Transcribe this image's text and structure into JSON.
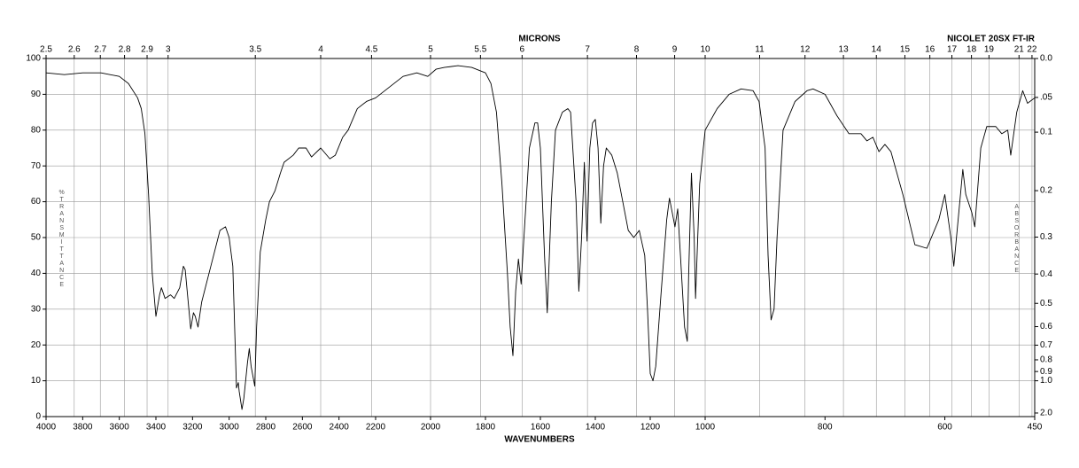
{
  "chart_data": {
    "type": "line",
    "title": "NICOLET 20SX FT-IR",
    "xlabel": "WAVENUMBERS",
    "top_axis_label": "MICRONS",
    "ylabel": "%TRANSMITTANCE",
    "y2label": "ABSORBANCE",
    "xlim": [
      4000,
      450
    ],
    "x_segments": [
      4000,
      2200,
      1000,
      450
    ],
    "xticks": [
      4000,
      3800,
      3600,
      3400,
      3200,
      3000,
      2800,
      2600,
      2400,
      2200,
      2000,
      1800,
      1600,
      1400,
      1200,
      1000,
      800,
      600,
      450
    ],
    "top_ticks": [
      2.5,
      2.6,
      2.7,
      2.8,
      2.9,
      3,
      3.5,
      4,
      4.5,
      5,
      5.5,
      6,
      7,
      8,
      9,
      10,
      11,
      12,
      13,
      14,
      15,
      16,
      17,
      18,
      19,
      21,
      22
    ],
    "ylim": [
      0,
      100
    ],
    "yticks": [
      0,
      10,
      20,
      30,
      40,
      50,
      60,
      70,
      80,
      90,
      100
    ],
    "y2ticks": [
      {
        "value": 0,
        "label": "0.0"
      },
      {
        "value": 0.05,
        "label": ".05"
      },
      {
        "value": 0.1,
        "label": "0.1"
      },
      0.2,
      0.3,
      0.4,
      0.5,
      0.6,
      0.7,
      0.8,
      0.9,
      {
        "value": 1,
        "label": "1.0"
      },
      {
        "value": 2,
        "label": "2.0"
      }
    ],
    "grid": true,
    "color": "#000000",
    "x": [
      4000,
      3900,
      3800,
      3700,
      3600,
      3550,
      3500,
      3480,
      3460,
      3440,
      3420,
      3400,
      3380,
      3370,
      3350,
      3320,
      3300,
      3270,
      3250,
      3240,
      3220,
      3210,
      3195,
      3185,
      3170,
      3150,
      3100,
      3050,
      3020,
      3000,
      2980,
      2960,
      2950,
      2945,
      2930,
      2920,
      2900,
      2890,
      2880,
      2860,
      2850,
      2830,
      2800,
      2780,
      2750,
      2720,
      2700,
      2650,
      2620,
      2580,
      2550,
      2500,
      2450,
      2420,
      2380,
      2350,
      2300,
      2250,
      2200,
      2150,
      2100,
      2050,
      2010,
      1980,
      1950,
      1900,
      1850,
      1800,
      1780,
      1760,
      1740,
      1720,
      1710,
      1700,
      1690,
      1680,
      1670,
      1660,
      1640,
      1620,
      1610,
      1600,
      1585,
      1575,
      1560,
      1545,
      1520,
      1500,
      1490,
      1470,
      1460,
      1450,
      1440,
      1430,
      1420,
      1410,
      1400,
      1390,
      1380,
      1370,
      1360,
      1340,
      1320,
      1300,
      1280,
      1260,
      1240,
      1220,
      1210,
      1200,
      1190,
      1180,
      1160,
      1140,
      1130,
      1120,
      1110,
      1100,
      1090,
      1075,
      1065,
      1060,
      1050,
      1040,
      1035,
      1020,
      1000,
      980,
      960,
      940,
      920,
      910,
      900,
      895,
      890,
      885,
      880,
      870,
      850,
      830,
      820,
      800,
      780,
      760,
      740,
      730,
      720,
      710,
      700,
      690,
      670,
      650,
      630,
      610,
      600,
      590,
      585,
      575,
      570,
      565,
      555,
      550,
      540,
      530,
      515,
      505,
      495,
      490,
      480,
      470,
      462,
      450
    ],
    "values": [
      96,
      95.5,
      96,
      96,
      95,
      93,
      89,
      86,
      79,
      62,
      40,
      28,
      34,
      36,
      33,
      34,
      33,
      36,
      42,
      41,
      30,
      24.5,
      29,
      28,
      25,
      32,
      42,
      52,
      53,
      50,
      42,
      8,
      9.5,
      7,
      2,
      5,
      15,
      19,
      14,
      8.5,
      25,
      46,
      55,
      60,
      63,
      68,
      71,
      73,
      75,
      75,
      72.5,
      75,
      72,
      73,
      78,
      80,
      86,
      88,
      89,
      92,
      95,
      96,
      95,
      97,
      97.5,
      98,
      97.5,
      96,
      93,
      85,
      65,
      40,
      25,
      17,
      35,
      44,
      37,
      50,
      75,
      82,
      82,
      75,
      45,
      29,
      60,
      80,
      85,
      86,
      85,
      60,
      35,
      50,
      71,
      49,
      75,
      82,
      83,
      75,
      54,
      70,
      75,
      73,
      68,
      60,
      52,
      50,
      52,
      45,
      30,
      12,
      10,
      14,
      35,
      55,
      61,
      57,
      53,
      58,
      45,
      25,
      21,
      40,
      68,
      50,
      33,
      65,
      80,
      86,
      90,
      91.5,
      91,
      88,
      75,
      45,
      27,
      30,
      50,
      80,
      88,
      91,
      91.5,
      90,
      84,
      79,
      79,
      77,
      78,
      74,
      76,
      74,
      62,
      48,
      47,
      55,
      62,
      50,
      42,
      60,
      69,
      62,
      57,
      53,
      75,
      81,
      81,
      79,
      80,
      73,
      85,
      91,
      87.5,
      89
    ]
  }
}
